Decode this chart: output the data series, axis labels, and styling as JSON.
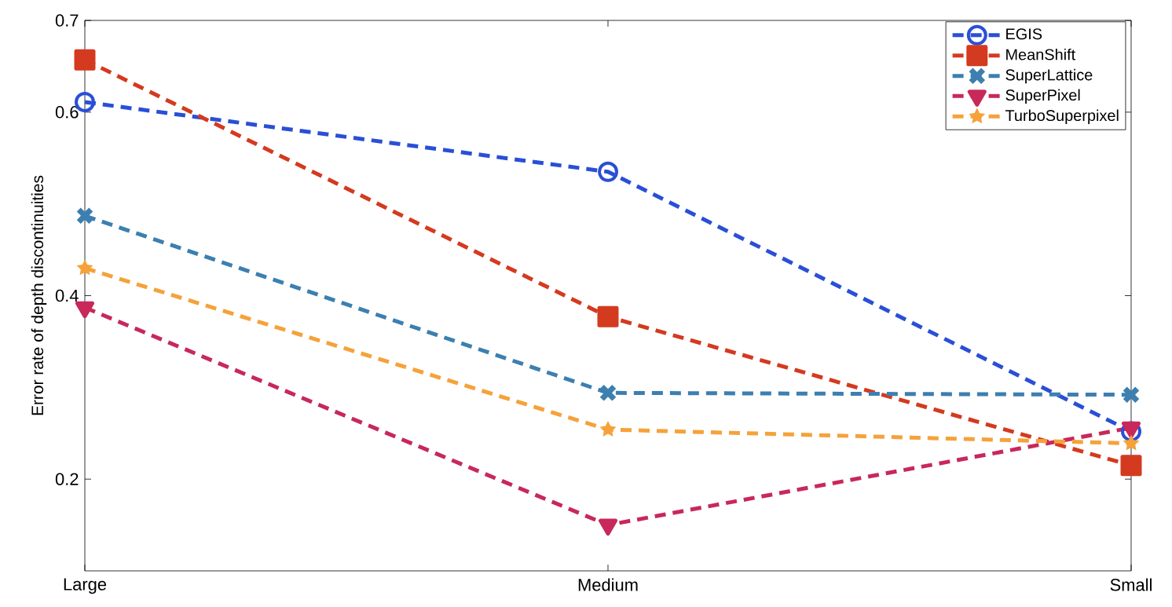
{
  "chart_data": {
    "type": "line",
    "ylabel": "Error rate of depth discontinuities",
    "categories": [
      "Large",
      "Medium",
      "Small"
    ],
    "ylim": [
      0.1,
      0.7
    ],
    "yticks": [
      0.2,
      0.4,
      0.6,
      0.7
    ],
    "legend": "top right",
    "grid": false,
    "line_style": "dashed",
    "series": [
      {
        "name": "EGIS",
        "color": "#2a4fd6",
        "marker": "circle",
        "values": [
          0.611,
          0.535,
          0.252
        ]
      },
      {
        "name": "MeanShift",
        "color": "#d43a1f",
        "marker": "square",
        "values": [
          0.657,
          0.377,
          0.215
        ]
      },
      {
        "name": "SuperLattice",
        "color": "#3c7fb0",
        "marker": "cross",
        "values": [
          0.487,
          0.294,
          0.292
        ]
      },
      {
        "name": "SuperPixel",
        "color": "#c8285a",
        "marker": "triangle",
        "values": [
          0.387,
          0.15,
          0.256
        ]
      },
      {
        "name": "TurboSuperpixel",
        "color": "#f5a23a",
        "marker": "star",
        "values": [
          0.43,
          0.254,
          0.239
        ]
      }
    ]
  }
}
